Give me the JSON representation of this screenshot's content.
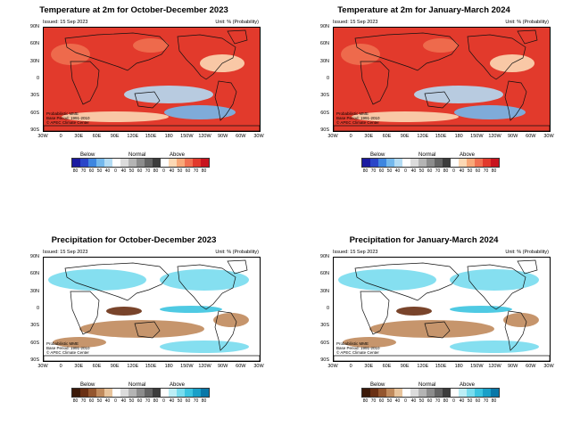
{
  "panels": [
    {
      "title": "Temperature at 2m for October-December 2023",
      "kind": "temp"
    },
    {
      "title": "Temperature at 2m for January-March 2024",
      "kind": "temp"
    },
    {
      "title": "Precipitation for October-December 2023",
      "kind": "prec"
    },
    {
      "title": "Precipitation for January-March 2024",
      "kind": "prec"
    }
  ],
  "common": {
    "issued": "Issued: 15 Sep 2023",
    "unit": "Unit: % (Probability)",
    "credit_lines": [
      "Probabilistic MME",
      "Base Period: 1991-2010",
      "© APEC Climate Center"
    ],
    "lat_labels": [
      "90N",
      "60N",
      "30N",
      "0",
      "30S",
      "60S",
      "90S"
    ],
    "lon_labels": [
      "30W",
      "0",
      "30E",
      "60E",
      "90E",
      "120E",
      "150E",
      "180",
      "150W",
      "120W",
      "90W",
      "60W",
      "30W"
    ],
    "categories": {
      "below": "Below",
      "normal": "Normal",
      "above": "Above"
    },
    "legend_ticks": [
      "80",
      "70",
      "60",
      "50",
      "40",
      "0",
      "40",
      "50",
      "60",
      "70",
      "80",
      "0",
      "40",
      "50",
      "60",
      "70",
      "80"
    ]
  },
  "legend_colors": {
    "temp": [
      "#1a1aa0",
      "#2a46c8",
      "#3e86e0",
      "#74b8ec",
      "#b4dcf4",
      "#ffffff",
      "#dcdcdc",
      "#b4b4b4",
      "#8c8c8c",
      "#646464",
      "#3c3c3c",
      "#ffffff",
      "#fcd8b4",
      "#f8a878",
      "#f07050",
      "#e23a2c",
      "#c8141e"
    ],
    "prec": [
      "#3c1a0a",
      "#6a3014",
      "#94562e",
      "#c08a5c",
      "#e8c49c",
      "#ffffff",
      "#dcdcdc",
      "#b4b4b4",
      "#8c8c8c",
      "#646464",
      "#3c3c3c",
      "#ffffff",
      "#bceef6",
      "#78dcee",
      "#3cc4e0",
      "#1aa0c8",
      "#0a78a8"
    ]
  },
  "map_colors": {
    "ocean": "#ffffff",
    "temp_warm": "#e23a2c",
    "temp_warm2": "#f07050",
    "temp_light": "#fcd8b4",
    "temp_cool": "#b4dcf4",
    "temp_cool2": "#74b8ec",
    "prec_wet": "#78dcee",
    "prec_wet2": "#3cc4e0",
    "prec_dry": "#c08a5c",
    "prec_dry2": "#6a3014",
    "coast": "#111111"
  }
}
